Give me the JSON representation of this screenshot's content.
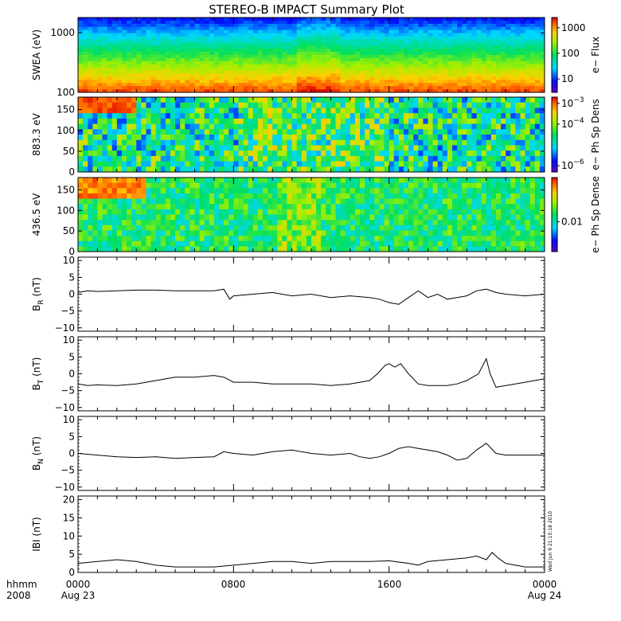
{
  "title": "STEREO-B IMPACT Summary Plot",
  "colors": {
    "axis": "#000000",
    "background": "#ffffff",
    "trace": "#000000"
  },
  "chart_data": [
    {
      "type": "heatmap",
      "id": "swea",
      "ylabel": "SWEA (eV)",
      "yscale": "log",
      "ylim": [
        100,
        1800
      ],
      "yticks": [
        100,
        1000
      ],
      "yticklabels": [
        "100",
        "1000"
      ],
      "colorbar": {
        "label": "e− Flux",
        "scale": "log",
        "range": [
          3,
          2500
        ],
        "ticks": [
          10,
          100,
          1000
        ],
        "ticklabels": [
          "10",
          "100",
          "1000"
        ]
      },
      "colormap": "rainbow"
    },
    {
      "type": "heatmap",
      "id": "pad883",
      "ylabel": "883.3 eV",
      "ylim": [
        0,
        180
      ],
      "yticks": [
        0,
        50,
        100,
        150
      ],
      "colorbar": {
        "label": "e− Ph Sp Dens",
        "scale": "log",
        "range": [
          5e-07,
          0.002
        ],
        "ticks": [
          1e-06,
          0.0001,
          0.001
        ],
        "ticklabels": [
          "10",
          "10",
          "10"
        ],
        "tickexponents": [
          "−6",
          "−4",
          "−3"
        ]
      },
      "colormap": "rainbow"
    },
    {
      "type": "heatmap",
      "id": "pad436",
      "ylabel": "436.5 eV",
      "ylim": [
        0,
        180
      ],
      "yticks": [
        0,
        50,
        100,
        150
      ],
      "colorbar": {
        "label": "e− Ph Sp Dense",
        "scale": "log",
        "range": [
          0.003,
          0.06
        ],
        "ticks": [
          0.01
        ],
        "ticklabels": [
          "0.01"
        ]
      },
      "colormap": "rainbow"
    },
    {
      "type": "line",
      "id": "br",
      "ylabel_main": "B",
      "ylabel_sub": "R",
      "ylabel_unit": " (nT)",
      "ylim": [
        -11,
        11
      ],
      "yticks": [
        -10,
        -5,
        0,
        5,
        10
      ],
      "x_hours": [
        0,
        0.5,
        1,
        2,
        3,
        4,
        5,
        6,
        7,
        7.5,
        7.8,
        8,
        9,
        10,
        11,
        12,
        13,
        14,
        15,
        15.5,
        16,
        16.5,
        17,
        17.5,
        18,
        18.5,
        19,
        19.5,
        20,
        20.5,
        21,
        21.5,
        22,
        23,
        24
      ],
      "y": [
        0.5,
        1,
        0.8,
        1,
        1.2,
        1.2,
        1,
        1,
        1,
        1.5,
        -1.5,
        -0.5,
        0,
        0.5,
        -0.5,
        0,
        -1,
        -0.5,
        -1,
        -1.5,
        -2.5,
        -3,
        -1,
        1,
        -1,
        0,
        -1.5,
        -1,
        -0.5,
        1,
        1.5,
        0.5,
        0,
        -0.5,
        0
      ]
    },
    {
      "type": "line",
      "id": "bt",
      "ylabel_main": "B",
      "ylabel_sub": "T",
      "ylabel_unit": " (nT)",
      "ylim": [
        -11,
        11
      ],
      "yticks": [
        -10,
        -5,
        0,
        5,
        10
      ],
      "x_hours": [
        0,
        0.5,
        1,
        2,
        3,
        4,
        5,
        6,
        7,
        7.5,
        8,
        9,
        10,
        11,
        12,
        13,
        14,
        15,
        15.4,
        15.8,
        16,
        16.3,
        16.6,
        17,
        17.5,
        18,
        18.5,
        19,
        19.5,
        20,
        20.3,
        20.6,
        21,
        21.2,
        21.5,
        22,
        22.5,
        23,
        24
      ],
      "y": [
        -3,
        -3.5,
        -3.3,
        -3.5,
        -3,
        -2,
        -1,
        -1,
        -0.5,
        -1,
        -2.5,
        -2.5,
        -3,
        -3,
        -3,
        -3.5,
        -3,
        -2,
        0,
        2.5,
        3,
        2,
        3,
        0,
        -3,
        -3.5,
        -3.5,
        -3.5,
        -3,
        -2,
        -1,
        0,
        4.5,
        0,
        -4,
        -3.5,
        -3,
        -2.5,
        -1.5
      ]
    },
    {
      "type": "line",
      "id": "bn",
      "ylabel_main": "B",
      "ylabel_sub": "N",
      "ylabel_unit": " (nT)",
      "ylim": [
        -11,
        11
      ],
      "yticks": [
        -10,
        -5,
        0,
        5,
        10
      ],
      "x_hours": [
        0,
        1,
        2,
        3,
        4,
        5,
        6,
        7,
        7.5,
        8,
        9,
        10,
        11,
        12,
        13,
        14,
        14.5,
        15,
        15.5,
        16,
        16.5,
        17,
        17.5,
        18,
        18.5,
        19,
        19.5,
        20,
        20.5,
        21,
        21.5,
        22,
        23,
        24
      ],
      "y": [
        0,
        -0.5,
        -1,
        -1.2,
        -1,
        -1.5,
        -1.2,
        -1,
        0.5,
        0,
        -0.5,
        0.5,
        1,
        0,
        -0.5,
        0,
        -1,
        -1.5,
        -1,
        0,
        1.5,
        2,
        1.5,
        1,
        0.5,
        -0.5,
        -2,
        -1.5,
        1,
        3,
        0,
        -0.5,
        -0.5,
        -0.5
      ]
    },
    {
      "type": "line",
      "id": "bmag",
      "ylabel_main": "IBI",
      "ylabel_sub": "",
      "ylabel_unit": " (nT)",
      "ylim": [
        0,
        21
      ],
      "yticks": [
        0,
        5,
        10,
        15,
        20
      ],
      "x_hours": [
        0,
        1,
        2,
        3,
        4,
        5,
        6,
        7,
        8,
        9,
        10,
        11,
        12,
        13,
        14,
        15,
        16,
        17,
        17.5,
        18,
        19,
        20,
        20.5,
        21,
        21.3,
        21.6,
        22,
        22.5,
        23,
        24
      ],
      "y": [
        2.5,
        3,
        3.5,
        3,
        2,
        1.5,
        1.5,
        1.5,
        2,
        2.5,
        3,
        3,
        2.5,
        3,
        3,
        3,
        3.2,
        2.5,
        2,
        3,
        3.5,
        4,
        4.5,
        3.5,
        5.5,
        4,
        2.5,
        2,
        1.5,
        1.5
      ]
    }
  ],
  "xaxis": {
    "unit_label": "hhmm",
    "year_label": "2008",
    "range_hours": [
      0,
      24
    ],
    "ticks": [
      {
        "hour": 0,
        "label": "0000",
        "date": "Aug 23"
      },
      {
        "hour": 8,
        "label": "0800",
        "date": ""
      },
      {
        "hour": 16,
        "label": "1600",
        "date": ""
      },
      {
        "hour": 24,
        "label": "0000",
        "date": "Aug 24"
      }
    ]
  },
  "stamp": "Wed Jun 9 21:15:18 2010"
}
